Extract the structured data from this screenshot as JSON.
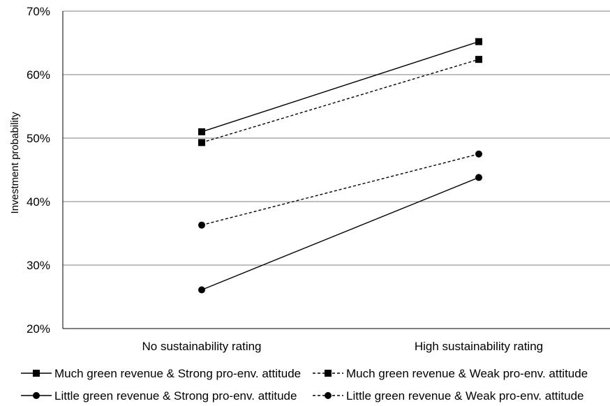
{
  "chart_data": {
    "type": "line",
    "title": "",
    "xlabel": "",
    "ylabel": "Investment probability",
    "categories": [
      "No sustainability rating",
      "High sustainability rating"
    ],
    "ylim": [
      0.2,
      0.7
    ],
    "yticks": [
      0.2,
      0.3,
      0.4,
      0.5,
      0.6,
      0.7
    ],
    "ytick_labels": [
      "20%",
      "30%",
      "40%",
      "50%",
      "60%",
      "70%"
    ],
    "grid": true,
    "legend_position": "bottom",
    "series": [
      {
        "name": "Much green revenue & Strong pro-env. attitude",
        "values": [
          0.51,
          0.652
        ],
        "marker": "square",
        "dash": "solid"
      },
      {
        "name": "Much green revenue & Weak pro-env. attitude",
        "values": [
          0.493,
          0.624
        ],
        "marker": "square",
        "dash": "dashed"
      },
      {
        "name": "Little green revenue & Strong pro-env. attitude",
        "values": [
          0.261,
          0.438
        ],
        "marker": "circle",
        "dash": "solid"
      },
      {
        "name": "Little green revenue & Weak pro-env. attitude",
        "values": [
          0.363,
          0.475
        ],
        "marker": "circle",
        "dash": "dashed"
      }
    ],
    "colors": {
      "line": "#000000",
      "grid": "#808080",
      "axis": "#000000"
    }
  }
}
